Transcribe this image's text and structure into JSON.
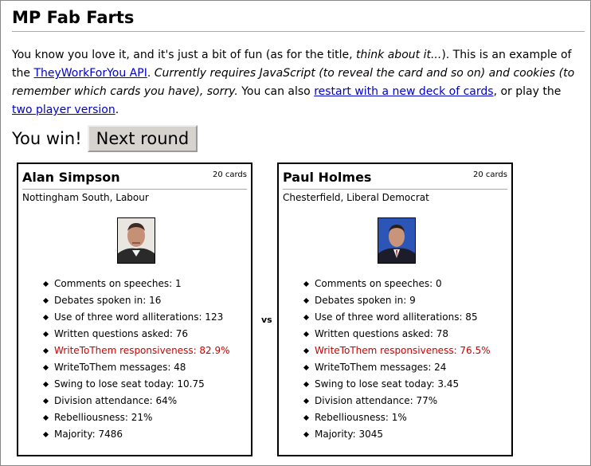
{
  "page": {
    "title": "MP Fab Farts",
    "intro": {
      "t1": "You know you love it, and it's just a bit of fun (as for the title, ",
      "em1": "think about it...",
      "t2": "). This is an example of the ",
      "link_api": "TheyWorkForYou API",
      "t3": ". ",
      "em2": "Currently requires JavaScript (to reveal the card and so on) and cookies (to remember which cards you have), sorry.",
      "t4": " You can also ",
      "link_restart": "restart with a new deck of cards",
      "t5": ", or play the ",
      "link_two": "two player version",
      "t6": "."
    },
    "result_text": "You win!",
    "next_button": "Next round",
    "vs": "vs"
  },
  "cards": [
    {
      "name": "Alan Simpson",
      "count": "20 cards",
      "seat": "Nottingham South, Labour",
      "stats": [
        "Comments on speeches: 1",
        "Debates spoken in: 16",
        "Use of three word alliterations: 123",
        "Written questions asked: 76",
        "WriteToThem responsiveness: 82.9%",
        "WriteToThem messages: 48",
        "Swing to lose seat today: 10.75",
        "Division attendance: 64%",
        "Rebelliousness: 21%",
        "Majority: 7486"
      ]
    },
    {
      "name": "Paul Holmes",
      "count": "20 cards",
      "seat": "Chesterfield, Liberal Democrat",
      "stats": [
        "Comments on speeches: 0",
        "Debates spoken in: 9",
        "Use of three word alliterations: 85",
        "Written questions asked: 78",
        "WriteToThem responsiveness: 76.5%",
        "WriteToThem messages: 24",
        "Swing to lose seat today: 3.45",
        "Division attendance: 77%",
        "Rebelliousness: 1%",
        "Majority: 3045"
      ]
    }
  ],
  "highlight_color": "#cc0000"
}
